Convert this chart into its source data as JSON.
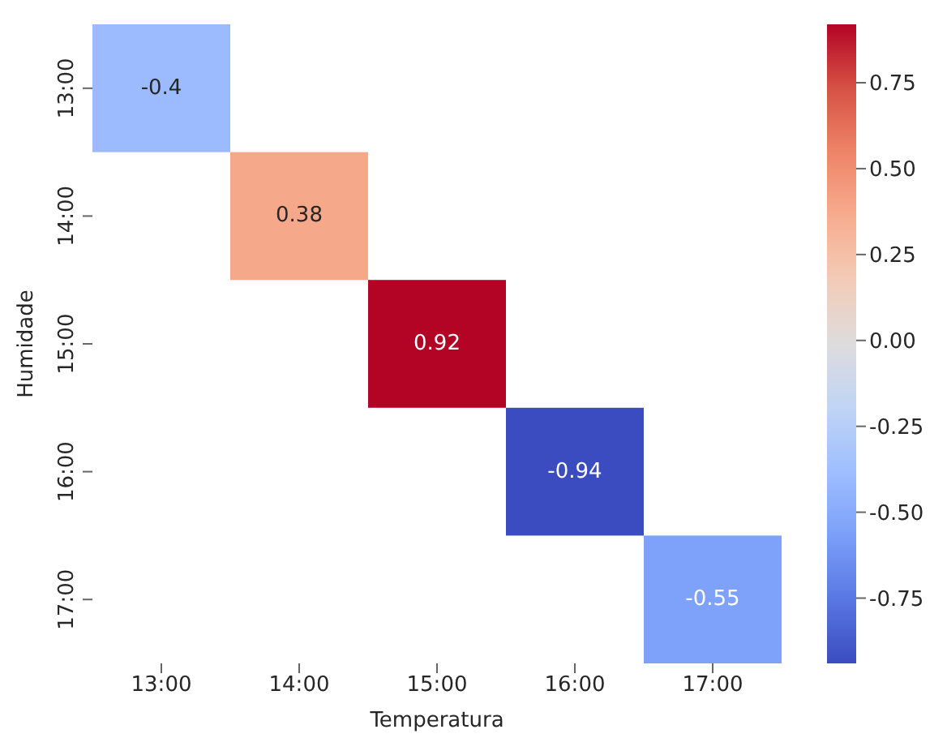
{
  "chart_data": {
    "type": "heatmap",
    "xlabel": "Temperatura",
    "ylabel": "Humidade",
    "categories": [
      "13:00",
      "14:00",
      "15:00",
      "16:00",
      "17:00"
    ],
    "y_categories": [
      "13:00",
      "14:00",
      "15:00",
      "16:00",
      "17:00"
    ],
    "cells": [
      [
        -0.4,
        null,
        null,
        null,
        null
      ],
      [
        null,
        0.38,
        null,
        null,
        null
      ],
      [
        null,
        null,
        0.92,
        null,
        null
      ],
      [
        null,
        null,
        null,
        -0.94,
        null
      ],
      [
        null,
        null,
        null,
        null,
        -0.55
      ]
    ],
    "data_labels": true,
    "clim": [
      -0.94,
      0.92
    ],
    "cticks": [
      -0.75,
      {
        "value": -0.5,
        "label": "-0.50"
      },
      -0.25,
      {
        "value": 0,
        "label": "0.00"
      },
      0.25,
      {
        "value": 0.5,
        "label": "0.50"
      },
      0.75
    ]
  }
}
